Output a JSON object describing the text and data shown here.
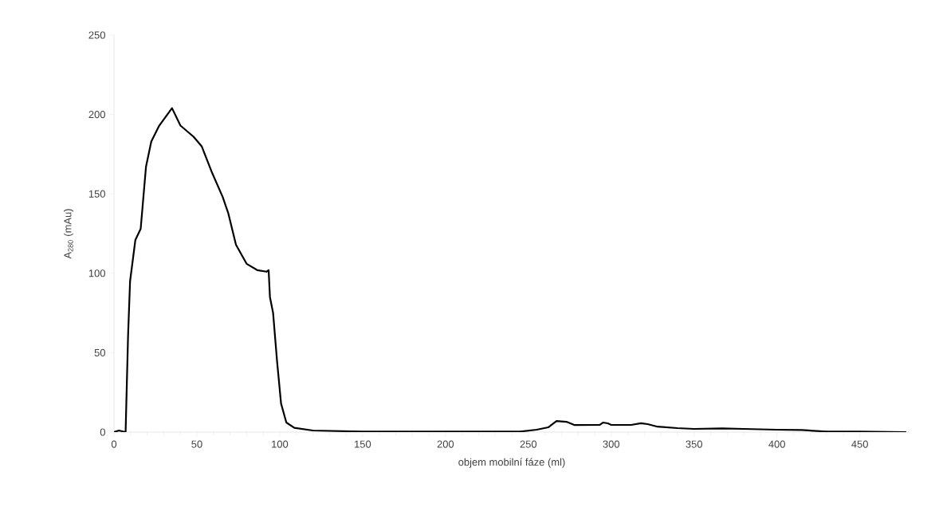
{
  "chart_data": {
    "type": "line",
    "xlabel": "objem mobilní fáze (ml)",
    "ylabel": "A$_{280}$ (mAu)",
    "xlim": [
      0,
      480
    ],
    "xticks": [
      0,
      50,
      100,
      150,
      200,
      250,
      300,
      350,
      400,
      450
    ],
    "ylim": [
      0,
      250
    ],
    "yticks": [
      0,
      50,
      100,
      150,
      200,
      250
    ],
    "grid": false,
    "marker": "none",
    "line_style": "solid",
    "series": [
      {
        "color": "#000000",
        "x": [
          0,
          3,
          7,
          8.5,
          9.7,
          12.9,
          16.1,
          19.3,
          22.5,
          27.3,
          35,
          40.1,
          48,
          52.9,
          59.3,
          65.6,
          68.9,
          73.6,
          80,
          86.4,
          92,
          93.3,
          94.1,
          96,
          98.4,
          100.8,
          104,
          108.8,
          120,
          150,
          200,
          245,
          255,
          262,
          267,
          273,
          278,
          293,
          295,
          298,
          300,
          312,
          318,
          322,
          328,
          340,
          350,
          367,
          380,
          400,
          415,
          430,
          450,
          478
        ],
        "values": [
          0,
          1,
          0,
          61,
          95,
          121,
          128,
          167,
          183,
          193,
          204,
          193,
          186,
          180,
          163,
          148,
          138,
          118,
          106,
          102,
          101,
          102,
          85,
          75,
          44.5,
          18,
          6,
          2.7,
          1,
          0.3,
          0.3,
          0.3,
          1.5,
          3,
          7,
          6.5,
          4.4,
          4.5,
          6,
          5.5,
          4.5,
          4.5,
          5.6,
          5,
          3.4,
          2.5,
          2,
          2.3,
          2,
          1.5,
          1.3,
          0.3,
          0.3,
          0
        ]
      }
    ]
  }
}
